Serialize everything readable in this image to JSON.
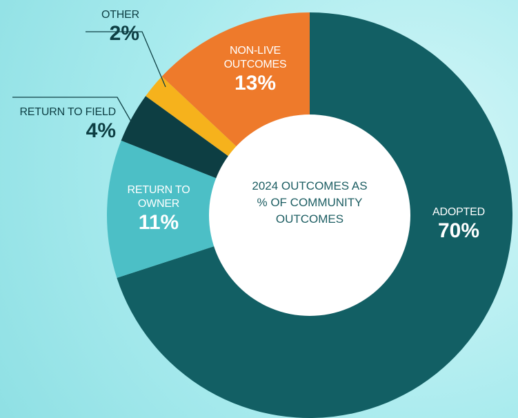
{
  "chart_data": {
    "type": "donut",
    "center_label": "2024 OUTCOMES AS % OF COMMUNITY OUTCOMES",
    "categories": [
      "ADOPTED",
      "RETURN TO OWNER",
      "RETURN TO FIELD",
      "OTHER",
      "NON-LIVE OUTCOMES"
    ],
    "values": [
      70,
      11,
      4,
      2,
      13
    ],
    "value_labels": [
      "70%",
      "11%",
      "4%",
      "2%",
      "13%"
    ],
    "colors": [
      "#125f64",
      "#4cbfc6",
      "#0d3e43",
      "#f6b21c",
      "#ee7a2b"
    ]
  }
}
